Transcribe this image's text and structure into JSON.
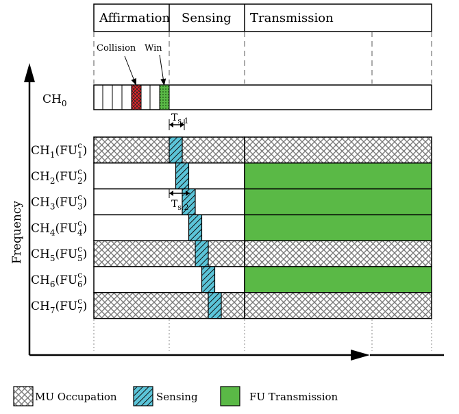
{
  "phases": [
    {
      "label": "Affirmation"
    },
    {
      "label": "Sensing"
    },
    {
      "label": "Transmission"
    }
  ],
  "callouts": {
    "collision": "Collision",
    "win": "Win"
  },
  "control_channel": {
    "name": "CH",
    "sub": "0"
  },
  "channels": [
    {
      "ch": "1",
      "fu_sub": "1",
      "fu_sup": "c",
      "state": "MU",
      "transmission": "MU"
    },
    {
      "ch": "2",
      "fu_sub": "2",
      "fu_sup": "c",
      "state": "free",
      "transmission": "FU"
    },
    {
      "ch": "3",
      "fu_sub": "3",
      "fu_sup": "c",
      "state": "free",
      "transmission": "FU"
    },
    {
      "ch": "4",
      "fu_sub": "4",
      "fu_sup": "c",
      "state": "free",
      "transmission": "FU"
    },
    {
      "ch": "5",
      "fu_sub": "5",
      "fu_sup": "c",
      "state": "MU",
      "transmission": "MU"
    },
    {
      "ch": "6",
      "fu_sub": "6",
      "fu_sup": "c",
      "state": "free",
      "transmission": "FU"
    },
    {
      "ch": "7",
      "fu_sub": "7",
      "fu_sup": "c",
      "state": "MU",
      "transmission": "MU"
    }
  ],
  "timing_labels": [
    {
      "base": "T",
      "sub": "s,1"
    },
    {
      "base": "T",
      "sub": "s,2"
    }
  ],
  "axis": {
    "ylabel": "Frequency"
  },
  "legend": [
    {
      "label": "MU Occupation",
      "pattern": "crosshatch"
    },
    {
      "label": "Sensing",
      "pattern": "sensing-stripes"
    },
    {
      "label": "FU Transmission",
      "pattern": "solid-green"
    }
  ],
  "colors": {
    "sensing": "#5bc4d8",
    "fu_transmission": "#5ab946",
    "collision": "#e8262b",
    "win": "#5ab946",
    "hatch": "#7a7a7a"
  }
}
